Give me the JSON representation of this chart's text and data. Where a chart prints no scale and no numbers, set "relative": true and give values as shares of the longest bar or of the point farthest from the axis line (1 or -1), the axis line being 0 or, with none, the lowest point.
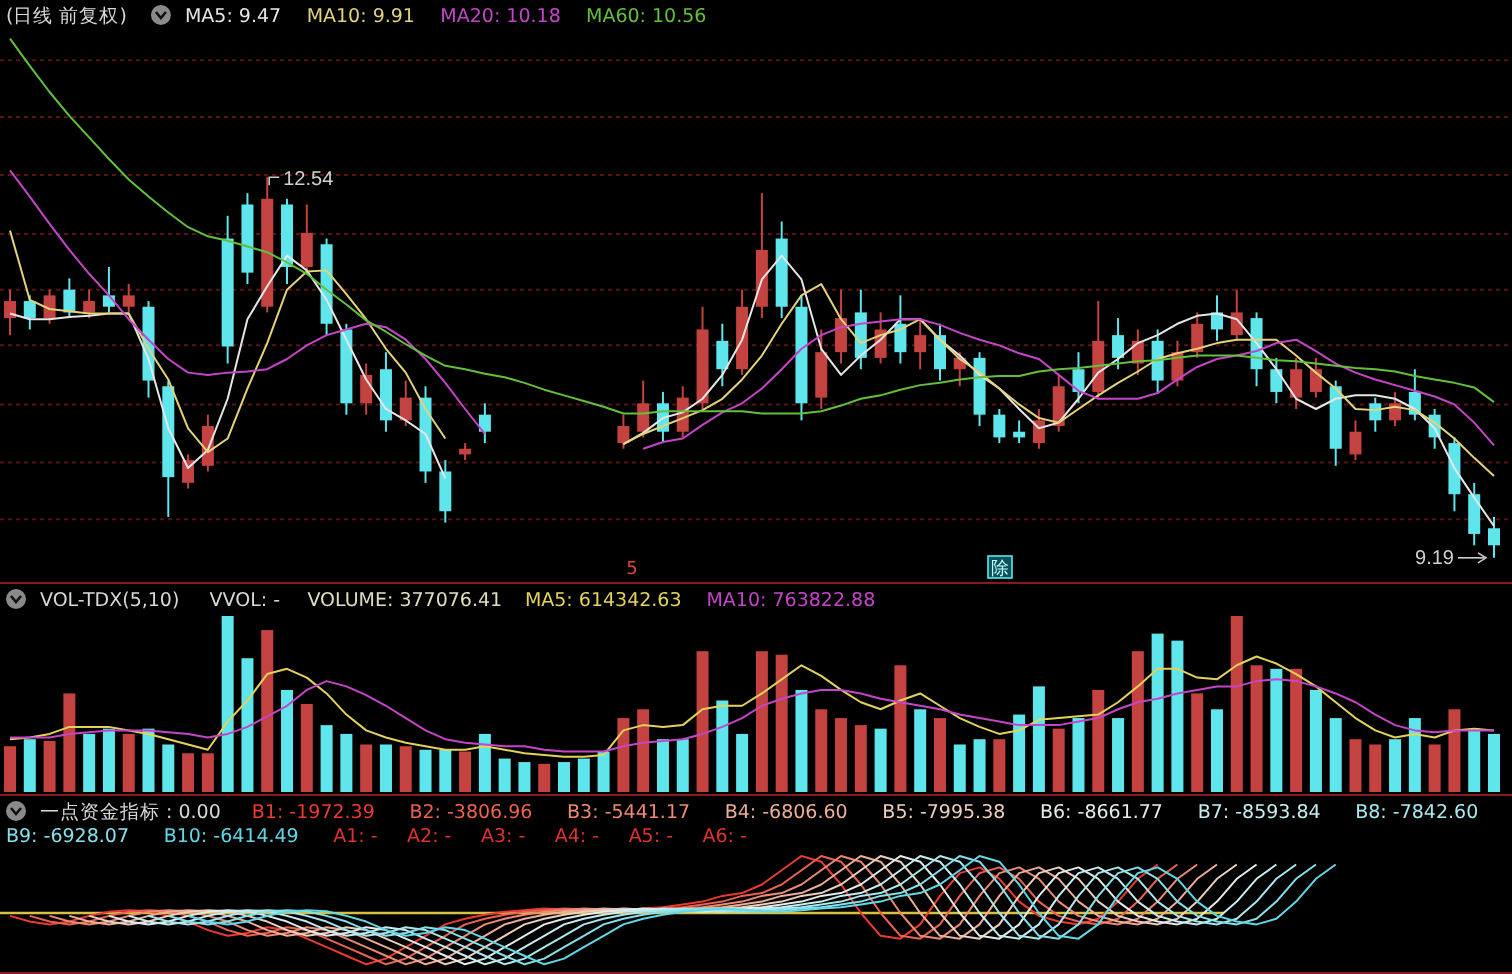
{
  "chart_data": [
    {
      "type": "candlestick",
      "title": "(日线 前复权)",
      "categories": [
        null,
        null,
        null,
        null,
        null,
        null,
        null,
        null,
        null,
        null,
        null,
        null,
        null,
        null,
        null,
        null,
        null,
        null,
        null,
        null,
        null,
        null,
        null,
        null,
        null,
        null,
        null,
        null,
        null,
        null,
        null,
        null,
        null,
        null,
        null,
        null,
        null,
        null,
        null,
        null,
        null,
        null,
        null,
        null,
        null,
        null,
        null,
        null,
        null,
        null,
        null,
        null,
        null,
        null,
        null,
        null,
        null,
        null,
        null,
        null,
        null,
        null,
        null,
        null,
        null,
        null,
        null,
        null,
        null,
        null,
        null,
        null,
        null,
        null,
        null,
        null
      ],
      "ohlc": [
        [
          11.3,
          11.55,
          11.15,
          11.45
        ],
        [
          11.45,
          11.5,
          11.2,
          11.3
        ],
        [
          11.3,
          11.55,
          11.25,
          11.5
        ],
        [
          11.55,
          11.65,
          11.3,
          11.35
        ],
        [
          11.35,
          11.55,
          11.3,
          11.45
        ],
        [
          11.5,
          11.75,
          11.35,
          11.4
        ],
        [
          11.4,
          11.6,
          11.35,
          11.5
        ],
        [
          11.4,
          11.45,
          10.6,
          10.75
        ],
        [
          10.7,
          10.75,
          9.55,
          9.9
        ],
        [
          9.85,
          10.1,
          9.8,
          10.05
        ],
        [
          10.0,
          10.45,
          9.95,
          10.35
        ],
        [
          12.0,
          12.2,
          10.9,
          11.05
        ],
        [
          12.3,
          12.4,
          11.6,
          11.7
        ],
        [
          11.4,
          12.54,
          11.35,
          12.35
        ],
        [
          12.3,
          12.35,
          11.6,
          11.75
        ],
        [
          11.75,
          12.3,
          11.7,
          12.05
        ],
        [
          11.95,
          12.0,
          11.15,
          11.25
        ],
        [
          11.2,
          11.25,
          10.45,
          10.55
        ],
        [
          10.55,
          10.9,
          10.45,
          10.8
        ],
        [
          10.85,
          11.0,
          10.3,
          10.4
        ],
        [
          10.4,
          10.75,
          10.35,
          10.6
        ],
        [
          10.6,
          10.7,
          9.85,
          9.95
        ],
        [
          9.95,
          10.05,
          9.5,
          9.6
        ],
        [
          10.1,
          10.2,
          10.05,
          10.15
        ],
        [
          10.45,
          10.55,
          10.2,
          10.3
        ],
        null,
        null,
        null,
        null,
        null,
        null,
        [
          10.2,
          10.45,
          10.15,
          10.35
        ],
        [
          10.3,
          10.75,
          10.25,
          10.55
        ],
        [
          10.55,
          10.65,
          10.2,
          10.3
        ],
        [
          10.3,
          10.7,
          10.25,
          10.6
        ],
        [
          10.55,
          11.4,
          10.5,
          11.2
        ],
        [
          11.1,
          11.25,
          10.7,
          10.85
        ],
        [
          10.85,
          11.55,
          10.8,
          11.4
        ],
        [
          11.4,
          12.4,
          11.3,
          11.9
        ],
        [
          12.0,
          12.15,
          11.3,
          11.4
        ],
        [
          11.4,
          11.5,
          10.4,
          10.55
        ],
        [
          10.6,
          11.2,
          10.5,
          11.0
        ],
        [
          11.0,
          11.55,
          10.9,
          11.3
        ],
        [
          11.35,
          11.55,
          10.85,
          10.95
        ],
        [
          10.95,
          11.35,
          10.9,
          11.2
        ],
        [
          11.25,
          11.5,
          10.9,
          11.0
        ],
        [
          11.0,
          11.3,
          10.85,
          11.15
        ],
        [
          11.15,
          11.25,
          10.75,
          10.85
        ],
        [
          10.85,
          11.0,
          10.7,
          10.95
        ],
        [
          10.95,
          11.0,
          10.35,
          10.45
        ],
        [
          10.45,
          10.5,
          10.2,
          10.25
        ],
        [
          10.3,
          10.4,
          10.2,
          10.25
        ],
        [
          10.2,
          10.5,
          10.15,
          10.4
        ],
        [
          10.35,
          10.8,
          10.3,
          10.7
        ],
        [
          10.85,
          11.0,
          10.55,
          10.65
        ],
        [
          10.65,
          11.45,
          10.6,
          11.1
        ],
        [
          11.15,
          11.3,
          10.85,
          10.95
        ],
        [
          10.9,
          11.2,
          10.8,
          11.1
        ],
        [
          11.1,
          11.2,
          10.65,
          10.75
        ],
        [
          10.75,
          11.1,
          10.7,
          11.0
        ],
        [
          11.0,
          11.35,
          10.95,
          11.25
        ],
        [
          11.35,
          11.5,
          11.1,
          11.2
        ],
        [
          11.15,
          11.55,
          11.1,
          11.35
        ],
        [
          11.3,
          11.35,
          10.7,
          10.85
        ],
        [
          10.85,
          10.95,
          10.55,
          10.65
        ],
        [
          10.6,
          10.95,
          10.5,
          10.85
        ],
        [
          10.65,
          10.95,
          10.6,
          10.85
        ],
        [
          10.7,
          10.75,
          10.0,
          10.15
        ],
        [
          10.1,
          10.4,
          10.05,
          10.3
        ],
        [
          10.55,
          10.6,
          10.3,
          10.4
        ],
        [
          10.4,
          10.65,
          10.35,
          10.55
        ],
        [
          10.65,
          10.85,
          10.4,
          10.45
        ],
        [
          10.45,
          10.5,
          10.15,
          10.25
        ],
        [
          10.2,
          10.25,
          9.6,
          9.75
        ],
        [
          9.75,
          9.85,
          9.3,
          9.4
        ],
        [
          9.45,
          9.55,
          9.19,
          9.3
        ]
      ],
      "colors": [
        "#c4423f",
        "#5ee6ec",
        "#c4423f",
        "#5ee6ec",
        "#c4423f",
        "#5ee6ec",
        "#c4423f",
        "#5ee6ec",
        "#5ee6ec",
        "#c4423f",
        "#c4423f",
        "#5ee6ec",
        "#5ee6ec",
        "#c4423f",
        "#5ee6ec",
        "#c4423f",
        "#5ee6ec",
        "#5ee6ec",
        "#c4423f",
        "#5ee6ec",
        "#c4423f",
        "#5ee6ec",
        "#5ee6ec",
        "#c4423f",
        "#5ee6ec",
        null,
        null,
        null,
        null,
        null,
        null,
        "#c4423f",
        "#c4423f",
        "#5ee6ec",
        "#c4423f",
        "#c4423f",
        "#5ee6ec",
        "#c4423f",
        "#c4423f",
        "#5ee6ec",
        "#5ee6ec",
        "#c4423f",
        "#c4423f",
        "#5ee6ec",
        "#c4423f",
        "#5ee6ec",
        "#c4423f",
        "#5ee6ec",
        "#c4423f",
        "#5ee6ec",
        "#5ee6ec",
        "#5ee6ec",
        "#c4423f",
        "#c4423f",
        "#5ee6ec",
        "#c4423f",
        "#5ee6ec",
        "#c4423f",
        "#5ee6ec",
        "#c4423f",
        "#c4423f",
        "#5ee6ec",
        "#c4423f",
        "#5ee6ec",
        "#5ee6ec",
        "#c4423f",
        "#c4423f",
        "#5ee6ec",
        "#c4423f",
        "#5ee6ec",
        "#c4423f",
        "#5ee6ec",
        "#5ee6ec",
        "#5ee6ec",
        "#5ee6ec",
        "#5ee6ec"
      ],
      "series": [
        {
          "name": "MA5: 9.47",
          "type": "line",
          "color": "#e6e6e6",
          "values": [
            11.34,
            11.29,
            11.29,
            11.31,
            11.32,
            11.34,
            11.34,
            10.94,
            10.33,
            9.98,
            10.14,
            10.59,
            11.29,
            11.58,
            11.85,
            11.72,
            11.46,
            11.11,
            10.76,
            10.5,
            10.4,
            10.28,
            9.89,
            null,
            null,
            null,
            null,
            null,
            null,
            null,
            null,
            10.19,
            10.29,
            10.42,
            10.47,
            10.59,
            10.8,
            11.11,
            11.64,
            11.85,
            11.64,
            11.03,
            10.8,
            10.97,
            11.11,
            11.29,
            11.29,
            11.11,
            10.97,
            10.8,
            10.68,
            10.5,
            10.33,
            10.38,
            10.59,
            10.82,
            10.94,
            11.08,
            11.15,
            11.25,
            11.32,
            11.34,
            11.29,
            11.08,
            10.85,
            10.59,
            10.5,
            10.59,
            10.62,
            10.62,
            10.59,
            10.5,
            10.33,
            9.98,
            9.72,
            9.47
          ]
        },
        {
          "name": "MA10: 9.91",
          "type": "line",
          "color": "#e3d37a",
          "values": [
            12.07,
            11.46,
            11.38,
            11.36,
            11.34,
            11.34,
            11.34,
            11.03,
            10.76,
            10.33,
            10.12,
            10.24,
            10.68,
            11.08,
            11.55,
            11.71,
            11.72,
            11.51,
            11.29,
            11.03,
            10.82,
            10.5,
            10.24,
            null,
            null,
            null,
            null,
            null,
            null,
            null,
            null,
            10.19,
            10.28,
            10.35,
            10.42,
            10.49,
            10.59,
            10.76,
            10.97,
            11.25,
            11.5,
            11.6,
            11.29,
            11.08,
            11.15,
            11.2,
            11.29,
            11.11,
            10.94,
            10.82,
            10.68,
            10.54,
            10.42,
            10.38,
            10.5,
            10.62,
            10.73,
            10.83,
            10.94,
            10.99,
            11.03,
            11.08,
            11.11,
            11.11,
            11.11,
            10.97,
            10.82,
            10.68,
            10.5,
            10.49,
            10.52,
            10.49,
            10.38,
            10.24,
            10.07,
            9.91
          ]
        },
        {
          "name": "MA20: 10.18",
          "type": "line",
          "color": "#c545c8",
          "values": [
            12.6,
            12.37,
            12.13,
            11.9,
            11.69,
            11.5,
            11.29,
            11.11,
            10.94,
            10.82,
            10.8,
            10.82,
            10.83,
            10.85,
            10.94,
            11.06,
            11.15,
            11.2,
            11.25,
            11.22,
            11.11,
            10.94,
            10.73,
            10.5,
            10.28,
            null,
            null,
            null,
            null,
            null,
            null,
            null,
            10.15,
            10.21,
            10.24,
            10.36,
            10.47,
            10.55,
            10.68,
            10.85,
            11.03,
            11.15,
            11.22,
            11.25,
            11.27,
            11.29,
            11.29,
            11.24,
            11.17,
            11.11,
            11.06,
            10.99,
            10.94,
            10.8,
            10.66,
            10.59,
            10.59,
            10.59,
            10.64,
            10.76,
            10.87,
            10.94,
            10.97,
            11.01,
            11.08,
            11.11,
            11.01,
            10.9,
            10.82,
            10.76,
            10.71,
            10.66,
            10.61,
            10.54,
            10.38,
            10.18
          ]
        },
        {
          "name": "MA60: 10.56",
          "type": "line",
          "color": "#62c03c",
          "values": [
            13.76,
            13.52,
            13.29,
            13.08,
            12.89,
            12.7,
            12.52,
            12.37,
            12.23,
            12.1,
            12.02,
            11.98,
            11.93,
            11.88,
            11.79,
            11.69,
            11.55,
            11.42,
            11.28,
            11.18,
            11.07,
            10.97,
            10.88,
            10.85,
            10.81,
            10.78,
            10.73,
            10.67,
            10.62,
            10.57,
            10.52,
            10.46,
            10.46,
            10.48,
            10.48,
            10.48,
            10.48,
            10.48,
            10.46,
            10.46,
            10.46,
            10.48,
            10.53,
            10.59,
            10.62,
            10.67,
            10.71,
            10.73,
            10.76,
            10.78,
            10.79,
            10.79,
            10.83,
            10.85,
            10.86,
            10.88,
            10.9,
            10.92,
            10.93,
            10.95,
            10.97,
            10.97,
            10.97,
            10.95,
            10.93,
            10.92,
            10.9,
            10.88,
            10.86,
            10.85,
            10.83,
            10.79,
            10.76,
            10.73,
            10.69,
            10.56
          ]
        }
      ],
      "yticks": [
        {
          "value": 13.57,
          "label": null
        },
        {
          "value": 13.07,
          "label": null
        },
        {
          "value": 12.56,
          "label": null
        },
        {
          "value": 12.04,
          "label": null
        },
        {
          "value": 11.55,
          "label": null
        },
        {
          "value": 11.06,
          "label": null
        },
        {
          "value": 10.54,
          "label": null
        },
        {
          "value": 10.03,
          "label": null
        },
        {
          "value": 9.53,
          "label": null
        }
      ],
      "grid": "y",
      "legend": "top left",
      "annotations": [
        "12.54",
        "9.19",
        "5",
        "除"
      ]
    },
    {
      "type": "bar",
      "relative": true,
      "title": "VOL-TDX(5,10)",
      "categories": [
        null,
        null,
        null,
        null,
        null,
        null,
        null,
        null,
        null,
        null,
        null,
        null,
        null,
        null,
        null,
        null,
        null,
        null,
        null,
        null,
        null,
        null,
        null,
        null,
        null,
        null,
        null,
        null,
        null,
        null,
        null,
        null,
        null,
        null,
        null,
        null,
        null,
        null,
        null,
        null,
        null,
        null,
        null,
        null,
        null,
        null,
        null,
        null,
        null,
        null,
        null,
        null,
        null,
        null,
        null,
        null,
        null,
        null,
        null,
        null,
        null,
        null,
        null,
        null,
        null,
        null,
        null,
        null,
        null,
        null,
        null,
        null,
        null,
        null,
        null,
        null
      ],
      "series": [
        {
          "name": "VOLUME: 377076.41",
          "color": "#e0dcc0",
          "colors": [
            "#c4423f",
            "#5ee6ec",
            "#c4423f",
            "#c4423f",
            "#5ee6ec",
            "#5ee6ec",
            "#c4423f",
            "#5ee6ec",
            "#5ee6ec",
            "#c4423f",
            "#c4423f",
            "#5ee6ec",
            "#5ee6ec",
            "#c4423f",
            "#5ee6ec",
            "#c4423f",
            "#5ee6ec",
            "#5ee6ec",
            "#c4423f",
            "#5ee6ec",
            "#c4423f",
            "#5ee6ec",
            "#5ee6ec",
            "#c4423f",
            "#5ee6ec",
            "#5ee6ec",
            "#5ee6ec",
            "#c4423f",
            "#5ee6ec",
            "#5ee6ec",
            "#5ee6ec",
            "#c4423f",
            "#c4423f",
            "#5ee6ec",
            "#5ee6ec",
            "#c4423f",
            "#5ee6ec",
            "#5ee6ec",
            "#c4423f",
            "#c4423f",
            "#5ee6ec",
            "#c4423f",
            "#c4423f",
            "#c4423f",
            "#5ee6ec",
            "#c4423f",
            "#5ee6ec",
            "#c4423f",
            "#5ee6ec",
            "#5ee6ec",
            "#c4423f",
            "#5ee6ec",
            "#5ee6ec",
            "#c4423f",
            "#5ee6ec",
            "#c4423f",
            "#5ee6ec",
            "#c4423f",
            "#5ee6ec",
            "#5ee6ec",
            "#c4423f",
            "#5ee6ec",
            "#c4423f",
            "#c4423f",
            "#5ee6ec",
            "#c4423f",
            "#5ee6ec",
            "#5ee6ec",
            "#c4423f",
            "#c4423f",
            "#5ee6ec",
            "#5ee6ec",
            "#c4423f",
            "#c4423f",
            "#5ee6ec",
            "#5ee6ec"
          ],
          "values": [
            0.26,
            0.3,
            0.29,
            0.56,
            0.33,
            0.36,
            0.33,
            0.36,
            0.27,
            0.22,
            0.22,
            1,
            0.76,
            0.92,
            0.58,
            0.5,
            0.38,
            0.33,
            0.27,
            0.27,
            0.26,
            0.24,
            0.24,
            0.23,
            0.33,
            0.19,
            0.17,
            0.16,
            0.17,
            0.19,
            0.23,
            0.42,
            0.47,
            0.3,
            0.3,
            0.8,
            0.52,
            0.33,
            0.8,
            0.78,
            0.58,
            0.47,
            0.42,
            0.38,
            0.36,
            0.72,
            0.47,
            0.42,
            0.27,
            0.3,
            0.3,
            0.44,
            0.6,
            0.36,
            0.42,
            0.58,
            0.42,
            0.8,
            0.9,
            0.86,
            0.56,
            0.47,
            1,
            0.72,
            0.7,
            0.7,
            0.58,
            0.42,
            0.3,
            0.27,
            0.3,
            0.42,
            0.27,
            0.47,
            0.36,
            0.33
          ]
        },
        {
          "name": "MA5: 614342.63",
          "type": "line",
          "color": "#e3d35a",
          "values": [
            0.3,
            0.31,
            0.33,
            0.37,
            0.37,
            0.37,
            0.35,
            0.33,
            0.3,
            0.27,
            0.24,
            0.4,
            0.52,
            0.67,
            0.7,
            0.65,
            0.56,
            0.44,
            0.35,
            0.31,
            0.28,
            0.26,
            0.24,
            0.24,
            0.26,
            0.24,
            0.22,
            0.21,
            0.2,
            0.2,
            0.21,
            0.35,
            0.38,
            0.37,
            0.38,
            0.47,
            0.49,
            0.49,
            0.56,
            0.64,
            0.72,
            0.66,
            0.58,
            0.51,
            0.47,
            0.52,
            0.56,
            0.49,
            0.42,
            0.37,
            0.33,
            0.35,
            0.41,
            0.42,
            0.43,
            0.44,
            0.51,
            0.6,
            0.7,
            0.7,
            0.65,
            0.64,
            0.72,
            0.77,
            0.73,
            0.67,
            0.6,
            0.51,
            0.42,
            0.35,
            0.31,
            0.33,
            0.31,
            0.35,
            0.36,
            0.35
          ]
        },
        {
          "name": "MA10: 763822.88",
          "type": "line",
          "color": "#c545c8",
          "values": [
            0.31,
            0.31,
            0.31,
            0.33,
            0.34,
            0.35,
            0.35,
            0.35,
            0.34,
            0.33,
            0.31,
            0.33,
            0.37,
            0.43,
            0.49,
            0.58,
            0.63,
            0.6,
            0.55,
            0.49,
            0.42,
            0.35,
            0.3,
            0.28,
            0.27,
            0.26,
            0.26,
            0.24,
            0.23,
            0.23,
            0.23,
            0.26,
            0.28,
            0.29,
            0.3,
            0.33,
            0.37,
            0.42,
            0.49,
            0.53,
            0.56,
            0.58,
            0.58,
            0.56,
            0.53,
            0.51,
            0.49,
            0.47,
            0.44,
            0.42,
            0.4,
            0.38,
            0.38,
            0.38,
            0.4,
            0.42,
            0.47,
            0.51,
            0.53,
            0.56,
            0.58,
            0.6,
            0.6,
            0.63,
            0.64,
            0.63,
            0.6,
            0.56,
            0.51,
            0.44,
            0.38,
            0.35,
            0.34,
            0.35,
            0.35,
            0.35
          ]
        }
      ],
      "legend": "top left",
      "annotations": [
        "VVOL: -"
      ]
    },
    {
      "type": "line",
      "relative": true,
      "title": "一点资金指标 : 0.00",
      "categories": [
        null,
        null,
        null,
        null,
        null,
        null,
        null,
        null,
        null,
        null,
        null,
        null,
        null,
        null,
        null,
        null,
        null,
        null,
        null,
        null,
        null,
        null,
        null,
        null,
        null,
        null,
        null,
        null,
        null,
        null,
        null,
        null,
        null,
        null,
        null,
        null,
        null,
        null,
        null,
        null,
        null,
        null,
        null,
        null,
        null,
        null,
        null,
        null,
        null,
        null,
        null,
        null,
        null,
        null,
        null,
        null,
        null,
        null,
        null,
        null,
        null,
        null,
        null,
        null,
        null,
        null,
        null,
        null,
        null,
        null,
        null,
        null,
        null,
        null,
        null,
        null
      ],
      "series": [
        {
          "name": "B1: -1972.39",
          "color": "#ec3a30",
          "values": [
            -0.05,
            -0.15,
            -0.2,
            -0.15,
            -0.05,
            0.02,
            0.05,
            0.03,
            -0.05,
            -0.15,
            -0.3,
            -0.4,
            -0.35,
            -0.25,
            -0.3,
            -0.45,
            -0.6,
            -0.75,
            -0.9,
            -0.8,
            -0.6,
            -0.4,
            -0.2,
            -0.1,
            -0.03,
            0.02,
            0.05,
            0.08,
            0.06,
            0.03,
            0.02,
            0.05,
            0.08,
            0.1,
            0.15,
            0.2,
            0.3,
            0.35,
            0.5,
            0.75,
            1,
            0.9,
            0.5,
            0,
            -0.4,
            -0.45,
            -0.2,
            0.3,
            0.7,
            0.8,
            0.6,
            0.2,
            -0.05,
            -0.15,
            -0.2,
            -0.1,
            0.2,
            0.6,
            0.85,
            null,
            null,
            null,
            null,
            null,
            null,
            null,
            null,
            null,
            null,
            null,
            null,
            null,
            null,
            null,
            null,
            null
          ]
        },
        {
          "name": "B2: -3806.96",
          "color": "#ec6250",
          "values": [
            null,
            -0.05,
            -0.15,
            -0.2,
            -0.15,
            -0.05,
            0.02,
            0.05,
            0.03,
            -0.05,
            -0.15,
            -0.3,
            -0.4,
            -0.35,
            -0.25,
            -0.3,
            -0.45,
            -0.6,
            -0.75,
            -0.9,
            -0.8,
            -0.6,
            -0.4,
            -0.2,
            -0.1,
            -0.03,
            0.02,
            0.05,
            0.08,
            0.06,
            0.03,
            0.02,
            0.05,
            0.08,
            0.1,
            0.15,
            0.2,
            0.3,
            0.35,
            0.5,
            0.75,
            1,
            0.9,
            0.5,
            0,
            -0.4,
            -0.45,
            -0.2,
            0.3,
            0.7,
            0.8,
            0.6,
            0.2,
            -0.05,
            -0.15,
            -0.2,
            -0.1,
            0.2,
            0.6,
            0.85,
            null,
            null,
            null,
            null,
            null,
            null,
            null,
            null,
            null,
            null,
            null,
            null,
            null,
            null,
            null,
            null
          ]
        },
        {
          "name": "B3: -5441.17",
          "color": "#ec8a72",
          "values": [
            null,
            null,
            -0.05,
            -0.15,
            -0.2,
            -0.15,
            -0.05,
            0.02,
            0.05,
            0.03,
            -0.05,
            -0.15,
            -0.3,
            -0.4,
            -0.35,
            -0.25,
            -0.3,
            -0.45,
            -0.6,
            -0.75,
            -0.9,
            -0.8,
            -0.6,
            -0.4,
            -0.2,
            -0.1,
            -0.03,
            0.02,
            0.05,
            0.08,
            0.06,
            0.03,
            0.02,
            0.05,
            0.08,
            0.1,
            0.15,
            0.2,
            0.3,
            0.35,
            0.5,
            0.75,
            1,
            0.9,
            0.5,
            0,
            -0.4,
            -0.45,
            -0.2,
            0.3,
            0.7,
            0.8,
            0.6,
            0.2,
            -0.05,
            -0.15,
            -0.2,
            -0.1,
            0.2,
            0.6,
            0.85,
            null,
            null,
            null,
            null,
            null,
            null,
            null,
            null,
            null,
            null,
            null,
            null,
            null,
            null,
            null
          ]
        },
        {
          "name": "B4: -6806.60",
          "color": "#ecae96",
          "values": [
            null,
            null,
            null,
            -0.05,
            -0.15,
            -0.2,
            -0.15,
            -0.05,
            0.02,
            0.05,
            0.03,
            -0.05,
            -0.15,
            -0.3,
            -0.4,
            -0.35,
            -0.25,
            -0.3,
            -0.45,
            -0.6,
            -0.75,
            -0.9,
            -0.8,
            -0.6,
            -0.4,
            -0.2,
            -0.1,
            -0.03,
            0.02,
            0.05,
            0.08,
            0.06,
            0.03,
            0.02,
            0.05,
            0.08,
            0.1,
            0.15,
            0.2,
            0.3,
            0.35,
            0.5,
            0.75,
            1,
            0.9,
            0.5,
            0,
            -0.4,
            -0.45,
            -0.2,
            0.3,
            0.7,
            0.8,
            0.6,
            0.2,
            -0.05,
            -0.15,
            -0.2,
            -0.1,
            0.2,
            0.6,
            0.85,
            null,
            null,
            null,
            null,
            null,
            null,
            null,
            null,
            null,
            null,
            null,
            null,
            null,
            null
          ]
        },
        {
          "name": "B5: -7995.38",
          "color": "#eccfbe",
          "values": [
            null,
            null,
            null,
            null,
            -0.05,
            -0.15,
            -0.2,
            -0.15,
            -0.05,
            0.02,
            0.05,
            0.03,
            -0.05,
            -0.15,
            -0.3,
            -0.4,
            -0.35,
            -0.25,
            -0.3,
            -0.45,
            -0.6,
            -0.75,
            -0.9,
            -0.8,
            -0.6,
            -0.4,
            -0.2,
            -0.1,
            -0.03,
            0.02,
            0.05,
            0.08,
            0.06,
            0.03,
            0.02,
            0.05,
            0.08,
            0.1,
            0.15,
            0.2,
            0.3,
            0.35,
            0.5,
            0.75,
            1,
            0.9,
            0.5,
            0,
            -0.4,
            -0.45,
            -0.2,
            0.3,
            0.7,
            0.8,
            0.6,
            0.2,
            -0.05,
            -0.15,
            -0.2,
            -0.1,
            0.2,
            0.6,
            0.85,
            null,
            null,
            null,
            null,
            null,
            null,
            null,
            null,
            null,
            null,
            null,
            null,
            null
          ]
        },
        {
          "name": "B6: -8661.77",
          "color": "#e2ecea",
          "values": [
            null,
            null,
            null,
            null,
            null,
            -0.05,
            -0.15,
            -0.2,
            -0.15,
            -0.05,
            0.02,
            0.05,
            0.03,
            -0.05,
            -0.15,
            -0.3,
            -0.4,
            -0.35,
            -0.25,
            -0.3,
            -0.45,
            -0.6,
            -0.75,
            -0.9,
            -0.8,
            -0.6,
            -0.4,
            -0.2,
            -0.1,
            -0.03,
            0.02,
            0.05,
            0.08,
            0.06,
            0.03,
            0.02,
            0.05,
            0.08,
            0.1,
            0.15,
            0.2,
            0.3,
            0.35,
            0.5,
            0.75,
            1,
            0.9,
            0.5,
            0,
            -0.4,
            -0.45,
            -0.2,
            0.3,
            0.7,
            0.8,
            0.6,
            0.2,
            -0.05,
            -0.15,
            -0.2,
            -0.1,
            0.2,
            0.6,
            0.85,
            null,
            null,
            null,
            null,
            null,
            null,
            null,
            null,
            null,
            null,
            null,
            null
          ]
        },
        {
          "name": "B7: -8593.84",
          "color": "#c6eef0",
          "values": [
            null,
            null,
            null,
            null,
            null,
            null,
            -0.05,
            -0.15,
            -0.2,
            -0.15,
            -0.05,
            0.02,
            0.05,
            0.03,
            -0.05,
            -0.15,
            -0.3,
            -0.4,
            -0.35,
            -0.25,
            -0.3,
            -0.45,
            -0.6,
            -0.75,
            -0.9,
            -0.8,
            -0.6,
            -0.4,
            -0.2,
            -0.1,
            -0.03,
            0.02,
            0.05,
            0.08,
            0.06,
            0.03,
            0.02,
            0.05,
            0.08,
            0.1,
            0.15,
            0.2,
            0.3,
            0.35,
            0.5,
            0.75,
            1,
            0.9,
            0.5,
            0,
            -0.4,
            -0.45,
            -0.2,
            0.3,
            0.7,
            0.8,
            0.6,
            0.2,
            -0.05,
            -0.15,
            -0.2,
            -0.1,
            0.2,
            0.6,
            0.85,
            null,
            null,
            null,
            null,
            null,
            null,
            null,
            null,
            null,
            null,
            null
          ]
        },
        {
          "name": "B8: -7842.60",
          "color": "#a8e8ee",
          "values": [
            null,
            null,
            null,
            null,
            null,
            null,
            null,
            -0.05,
            -0.15,
            -0.2,
            -0.15,
            -0.05,
            0.02,
            0.05,
            0.03,
            -0.05,
            -0.15,
            -0.3,
            -0.4,
            -0.35,
            -0.25,
            -0.3,
            -0.45,
            -0.6,
            -0.75,
            -0.9,
            -0.8,
            -0.6,
            -0.4,
            -0.2,
            -0.1,
            -0.03,
            0.02,
            0.05,
            0.08,
            0.06,
            0.03,
            0.02,
            0.05,
            0.08,
            0.1,
            0.15,
            0.2,
            0.3,
            0.35,
            0.5,
            0.75,
            1,
            0.9,
            0.5,
            0,
            -0.4,
            -0.45,
            -0.2,
            0.3,
            0.7,
            0.8,
            0.6,
            0.2,
            -0.05,
            -0.15,
            -0.2,
            -0.1,
            0.2,
            0.6,
            0.85,
            null,
            null,
            null,
            null,
            null,
            null,
            null,
            null,
            null,
            null
          ]
        },
        {
          "name": "B9: -6928.07",
          "color": "#86e0ea",
          "values": [
            null,
            null,
            null,
            null,
            null,
            null,
            null,
            null,
            -0.05,
            -0.15,
            -0.2,
            -0.15,
            -0.05,
            0.02,
            0.05,
            0.03,
            -0.05,
            -0.15,
            -0.3,
            -0.4,
            -0.35,
            -0.25,
            -0.3,
            -0.45,
            -0.6,
            -0.75,
            -0.9,
            -0.8,
            -0.6,
            -0.4,
            -0.2,
            -0.1,
            -0.03,
            0.02,
            0.05,
            0.08,
            0.06,
            0.03,
            0.02,
            0.05,
            0.08,
            0.1,
            0.15,
            0.2,
            0.3,
            0.35,
            0.5,
            0.75,
            1,
            0.9,
            0.5,
            0,
            -0.4,
            -0.45,
            -0.2,
            0.3,
            0.7,
            0.8,
            0.6,
            0.2,
            -0.05,
            -0.15,
            -0.2,
            -0.1,
            0.2,
            0.6,
            0.85,
            null,
            null,
            null,
            null,
            null,
            null,
            null,
            null,
            null
          ]
        },
        {
          "name": "B10: -6414.49",
          "color": "#62d8e6",
          "values": [
            null,
            null,
            null,
            null,
            null,
            null,
            null,
            null,
            null,
            -0.05,
            -0.15,
            -0.2,
            -0.15,
            -0.05,
            0.02,
            0.05,
            0.03,
            -0.05,
            -0.15,
            -0.3,
            -0.4,
            -0.35,
            -0.25,
            -0.3,
            -0.45,
            -0.6,
            -0.75,
            -0.9,
            -0.8,
            -0.6,
            -0.4,
            -0.2,
            -0.1,
            -0.03,
            0.02,
            0.05,
            0.08,
            0.06,
            0.03,
            0.02,
            0.05,
            0.08,
            0.1,
            0.15,
            0.2,
            0.3,
            0.35,
            0.5,
            0.75,
            1,
            0.9,
            0.5,
            0,
            -0.4,
            -0.45,
            -0.2,
            0.3,
            0.7,
            0.8,
            0.6,
            0.2,
            -0.05,
            -0.15,
            -0.2,
            -0.1,
            0.2,
            0.6,
            0.85,
            null,
            null,
            null,
            null,
            null,
            null,
            null,
            null
          ]
        }
      ],
      "ref_lines": [
        {
          "axis": "y",
          "value": 0,
          "color": "#d8c040"
        }
      ],
      "legend": "top left",
      "annotations": [
        "A1: -",
        "A2: -",
        "A3: -",
        "A4: -",
        "A5: -",
        "A6: -"
      ]
    }
  ]
}
